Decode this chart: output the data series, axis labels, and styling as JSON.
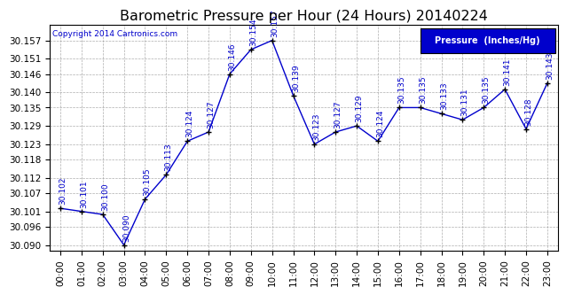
{
  "title": "Barometric Pressure per Hour (24 Hours) 20140224",
  "copyright": "Copyright 2014 Cartronics.com",
  "legend_label": "Pressure  (Inches/Hg)",
  "hours": [
    "00:00",
    "01:00",
    "02:00",
    "03:00",
    "04:00",
    "05:00",
    "06:00",
    "07:00",
    "08:00",
    "09:00",
    "10:00",
    "11:00",
    "12:00",
    "13:00",
    "14:00",
    "15:00",
    "16:00",
    "17:00",
    "18:00",
    "19:00",
    "20:00",
    "21:00",
    "22:00",
    "23:00"
  ],
  "values": [
    30.102,
    30.101,
    30.1,
    30.09,
    30.105,
    30.113,
    30.124,
    30.127,
    30.146,
    30.154,
    30.157,
    30.139,
    30.123,
    30.127,
    30.129,
    30.124,
    30.135,
    30.135,
    30.133,
    30.131,
    30.135,
    30.141,
    30.128,
    30.143
  ],
  "ytick_values": [
    30.09,
    30.096,
    30.101,
    30.107,
    30.112,
    30.118,
    30.123,
    30.129,
    30.135,
    30.14,
    30.146,
    30.151,
    30.157
  ],
  "ylim_min": 30.088,
  "ylim_max": 30.162,
  "line_color": "#0000cc",
  "marker_color": "#000000",
  "bg_color": "#ffffff",
  "plot_bg_color": "#ffffff",
  "grid_color": "#999999",
  "title_color": "#000000",
  "label_color": "#0000cc",
  "copyright_color": "#0000cc",
  "legend_bg": "#0000cc",
  "legend_text_color": "#ffffff",
  "title_fontsize": 11.5,
  "tick_fontsize": 7.5,
  "annotation_fontsize": 6.5
}
